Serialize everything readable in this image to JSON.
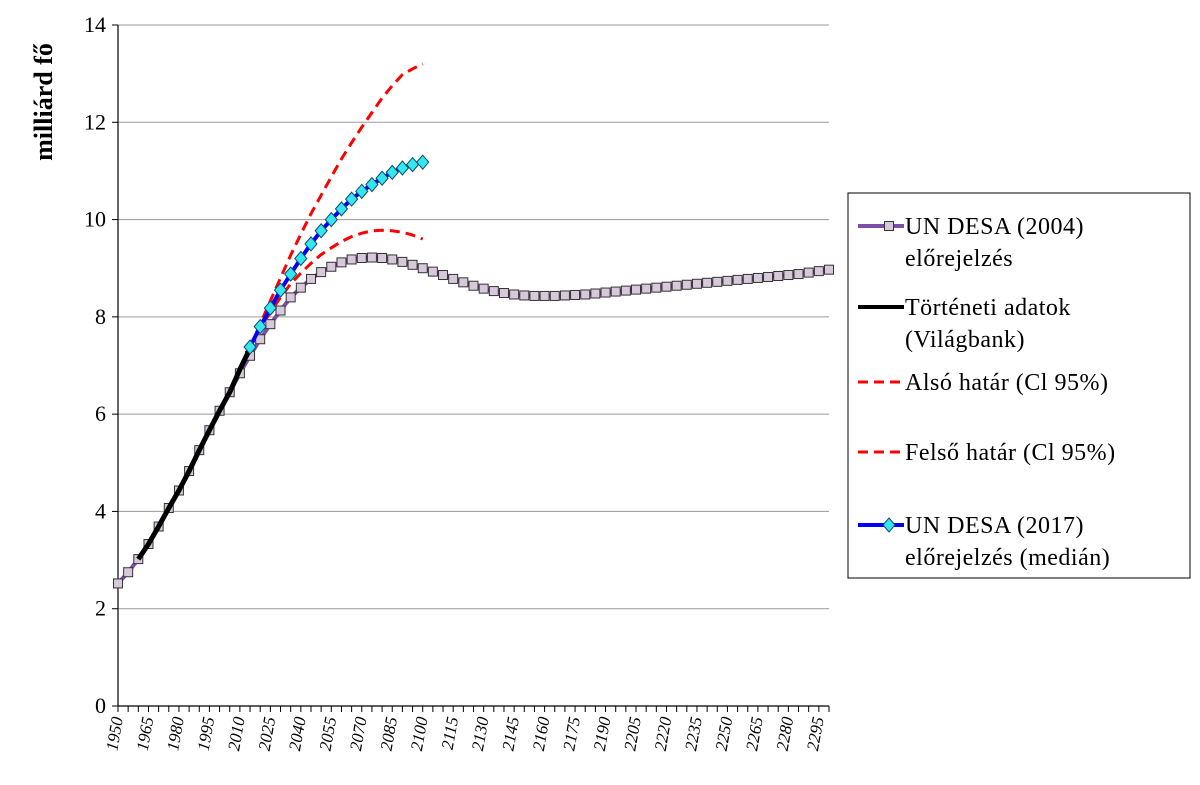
{
  "chart_data": {
    "type": "line",
    "title": "",
    "xlabel": "",
    "ylabel": "milliárd fő",
    "xlim": [
      1950,
      2300
    ],
    "ylim": [
      0,
      14
    ],
    "y_ticks": [
      0,
      2,
      4,
      6,
      8,
      10,
      12,
      14
    ],
    "x_ticks": [
      1950,
      1965,
      1980,
      1995,
      2010,
      2025,
      2040,
      2055,
      2070,
      2085,
      2100,
      2115,
      2130,
      2145,
      2160,
      2175,
      2190,
      2205,
      2220,
      2235,
      2250,
      2265,
      2280,
      2295
    ],
    "grid": true,
    "legend_position": "right",
    "series": [
      {
        "name_lines": [
          "UN DESA (2004)",
          "előrejelzés"
        ],
        "color": "#7b4fa8",
        "marker": "square",
        "marker_color": "#d8c8dc",
        "x": [
          1950,
          1955,
          1960,
          1965,
          1970,
          1975,
          1980,
          1985,
          1990,
          1995,
          2000,
          2005,
          2010,
          2015,
          2020,
          2025,
          2030,
          2035,
          2040,
          2045,
          2050,
          2055,
          2060,
          2065,
          2070,
          2075,
          2080,
          2085,
          2090,
          2095,
          2100,
          2105,
          2110,
          2115,
          2120,
          2125,
          2130,
          2135,
          2140,
          2145,
          2150,
          2155,
          2160,
          2165,
          2170,
          2175,
          2180,
          2185,
          2190,
          2195,
          2200,
          2205,
          2210,
          2215,
          2220,
          2225,
          2230,
          2235,
          2240,
          2245,
          2250,
          2255,
          2260,
          2265,
          2270,
          2275,
          2280,
          2285,
          2290,
          2295,
          2300
        ],
        "values": [
          2.52,
          2.75,
          3.02,
          3.33,
          3.69,
          4.07,
          4.43,
          4.83,
          5.26,
          5.67,
          6.07,
          6.45,
          6.84,
          7.2,
          7.54,
          7.85,
          8.13,
          8.4,
          8.6,
          8.78,
          8.92,
          9.03,
          9.12,
          9.18,
          9.21,
          9.22,
          9.21,
          9.18,
          9.13,
          9.07,
          9.0,
          8.93,
          8.86,
          8.78,
          8.71,
          8.64,
          8.58,
          8.53,
          8.49,
          8.46,
          8.44,
          8.43,
          8.43,
          8.43,
          8.44,
          8.45,
          8.46,
          8.48,
          8.5,
          8.52,
          8.54,
          8.56,
          8.58,
          8.6,
          8.62,
          8.64,
          8.66,
          8.68,
          8.7,
          8.72,
          8.74,
          8.76,
          8.78,
          8.8,
          8.82,
          8.84,
          8.86,
          8.88,
          8.91,
          8.94,
          8.97
        ]
      },
      {
        "name_lines": [
          "Történeti adatok",
          "(Világbank)"
        ],
        "color": "#000000",
        "marker": "none",
        "x": [
          1960,
          1965,
          1970,
          1975,
          1980,
          1985,
          1990,
          1995,
          2000,
          2005,
          2010,
          2015
        ],
        "values": [
          3.02,
          3.33,
          3.69,
          4.07,
          4.43,
          4.83,
          5.26,
          5.67,
          6.07,
          6.45,
          6.92,
          7.35
        ]
      },
      {
        "name_lines": [
          "Alsó határ (Cl 95%)"
        ],
        "color": "#ff0000",
        "marker": "none",
        "dashed": true,
        "x": [
          2015,
          2020,
          2025,
          2030,
          2035,
          2040,
          2045,
          2050,
          2055,
          2060,
          2065,
          2070,
          2075,
          2080,
          2085,
          2090,
          2095,
          2100
        ],
        "values": [
          7.38,
          7.75,
          8.1,
          8.4,
          8.68,
          8.9,
          9.1,
          9.28,
          9.42,
          9.55,
          9.65,
          9.72,
          9.77,
          9.78,
          9.77,
          9.74,
          9.68,
          9.6
        ]
      },
      {
        "name_lines": [
          "Felső határ (Cl 95%)"
        ],
        "color": "#ff0000",
        "marker": "none",
        "dashed": true,
        "x": [
          2015,
          2020,
          2025,
          2030,
          2035,
          2040,
          2045,
          2050,
          2055,
          2060,
          2065,
          2070,
          2075,
          2080,
          2085,
          2090,
          2095,
          2100
        ],
        "values": [
          7.38,
          7.85,
          8.33,
          8.8,
          9.27,
          9.7,
          10.12,
          10.5,
          10.88,
          11.25,
          11.58,
          11.9,
          12.2,
          12.5,
          12.75,
          12.98,
          13.1,
          13.2
        ]
      },
      {
        "name_lines": [
          "UN DESA (2017)",
          "előrejelzés (medián)"
        ],
        "color": "#0000ff",
        "marker": "diamond",
        "marker_color": "#33e6f0",
        "x": [
          2015,
          2020,
          2025,
          2030,
          2035,
          2040,
          2045,
          2050,
          2055,
          2060,
          2065,
          2070,
          2075,
          2080,
          2085,
          2090,
          2095,
          2100
        ],
        "values": [
          7.38,
          7.8,
          8.18,
          8.55,
          8.88,
          9.2,
          9.5,
          9.77,
          10.0,
          10.22,
          10.42,
          10.58,
          10.72,
          10.85,
          10.97,
          11.06,
          11.13,
          11.18
        ]
      }
    ]
  }
}
